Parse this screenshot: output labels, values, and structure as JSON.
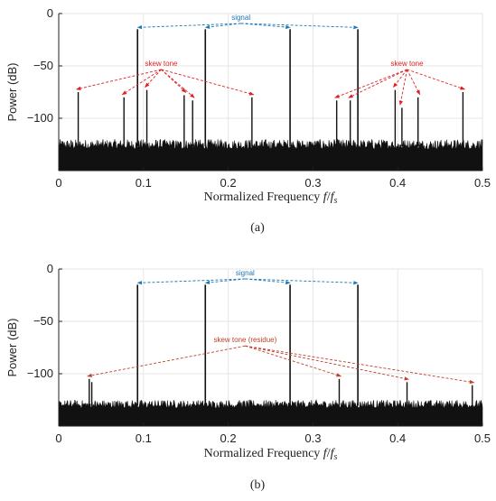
{
  "chart_data": [
    {
      "type": "line",
      "panel_label": "(a)",
      "xlabel": "Normalized Frequency f/f_s",
      "xlabel_parts": {
        "text": "Normalized Frequency ",
        "f": "f",
        "slash": "/",
        "fs_base": "f",
        "fs_sub": "s"
      },
      "ylabel": "Power (dB)",
      "xlim": [
        0,
        0.5
      ],
      "ylim": [
        -150,
        0
      ],
      "xticks": [
        0,
        0.1,
        0.2,
        0.3,
        0.4,
        0.5
      ],
      "xtick_labels": [
        "0",
        "0.1",
        "0.2",
        "0.3",
        "0.4",
        "0.5"
      ],
      "yticks": [
        0,
        -50,
        -100
      ],
      "ytick_labels": [
        "0",
        "−50",
        "−100"
      ],
      "grid": true,
      "noise_floor_db": [
        -137,
        -120
      ],
      "signal_tones": [
        {
          "x": 0.093,
          "y": -15
        },
        {
          "x": 0.173,
          "y": -15
        },
        {
          "x": 0.273,
          "y": -15
        },
        {
          "x": 0.353,
          "y": -15
        }
      ],
      "skew_tones": [
        {
          "x": 0.023,
          "y": -75
        },
        {
          "x": 0.077,
          "y": -80
        },
        {
          "x": 0.104,
          "y": -73
        },
        {
          "x": 0.148,
          "y": -78
        },
        {
          "x": 0.158,
          "y": -83
        },
        {
          "x": 0.228,
          "y": -80
        },
        {
          "x": 0.328,
          "y": -83
        },
        {
          "x": 0.344,
          "y": -83
        },
        {
          "x": 0.397,
          "y": -73
        },
        {
          "x": 0.405,
          "y": -90
        },
        {
          "x": 0.424,
          "y": -80
        },
        {
          "x": 0.477,
          "y": -75
        }
      ],
      "annotations": [
        {
          "text": "signal",
          "color": "#1f77b4",
          "at": {
            "x": 0.215,
            "y": -6
          },
          "targets": "signal_tones"
        },
        {
          "text": "skew tone",
          "color": "#e02020",
          "at": {
            "x": 0.121,
            "y": -50
          },
          "targets": "left_skew"
        },
        {
          "text": "skew tone",
          "color": "#e02020",
          "at": {
            "x": 0.411,
            "y": -50
          },
          "targets": "right_skew"
        }
      ]
    },
    {
      "type": "line",
      "panel_label": "(b)",
      "xlabel": "Normalized Frequency f/f_s",
      "xlabel_parts": {
        "text": "Normalized Frequency ",
        "f": "f",
        "slash": "/",
        "fs_base": "f",
        "fs_sub": "s"
      },
      "ylabel": "Power (dB)",
      "xlim": [
        0,
        0.5
      ],
      "ylim": [
        -150,
        0
      ],
      "xticks": [
        0,
        0.1,
        0.2,
        0.3,
        0.4,
        0.5
      ],
      "xtick_labels": [
        "0",
        "0.1",
        "0.2",
        "0.3",
        "0.4",
        "0.5"
      ],
      "yticks": [
        0,
        -50,
        -100
      ],
      "ytick_labels": [
        "0",
        "−50",
        "−100"
      ],
      "grid": true,
      "noise_floor_db": [
        -139,
        -125
      ],
      "signal_tones": [
        {
          "x": 0.093,
          "y": -15
        },
        {
          "x": 0.173,
          "y": -15
        },
        {
          "x": 0.273,
          "y": -15
        },
        {
          "x": 0.353,
          "y": -15
        }
      ],
      "skew_tones": [
        {
          "x": 0.036,
          "y": -105
        },
        {
          "x": 0.039,
          "y": -108
        },
        {
          "x": 0.331,
          "y": -105
        },
        {
          "x": 0.411,
          "y": -108
        },
        {
          "x": 0.488,
          "y": -111
        }
      ],
      "annotations": [
        {
          "text": "signal",
          "color": "#1f77b4",
          "at": {
            "x": 0.22,
            "y": -6
          },
          "targets": "signal_tones"
        },
        {
          "text": "skew tone (residue)",
          "color": "#c0402a",
          "at": {
            "x": 0.22,
            "y": -70
          },
          "targets": "all_skew"
        }
      ]
    }
  ]
}
